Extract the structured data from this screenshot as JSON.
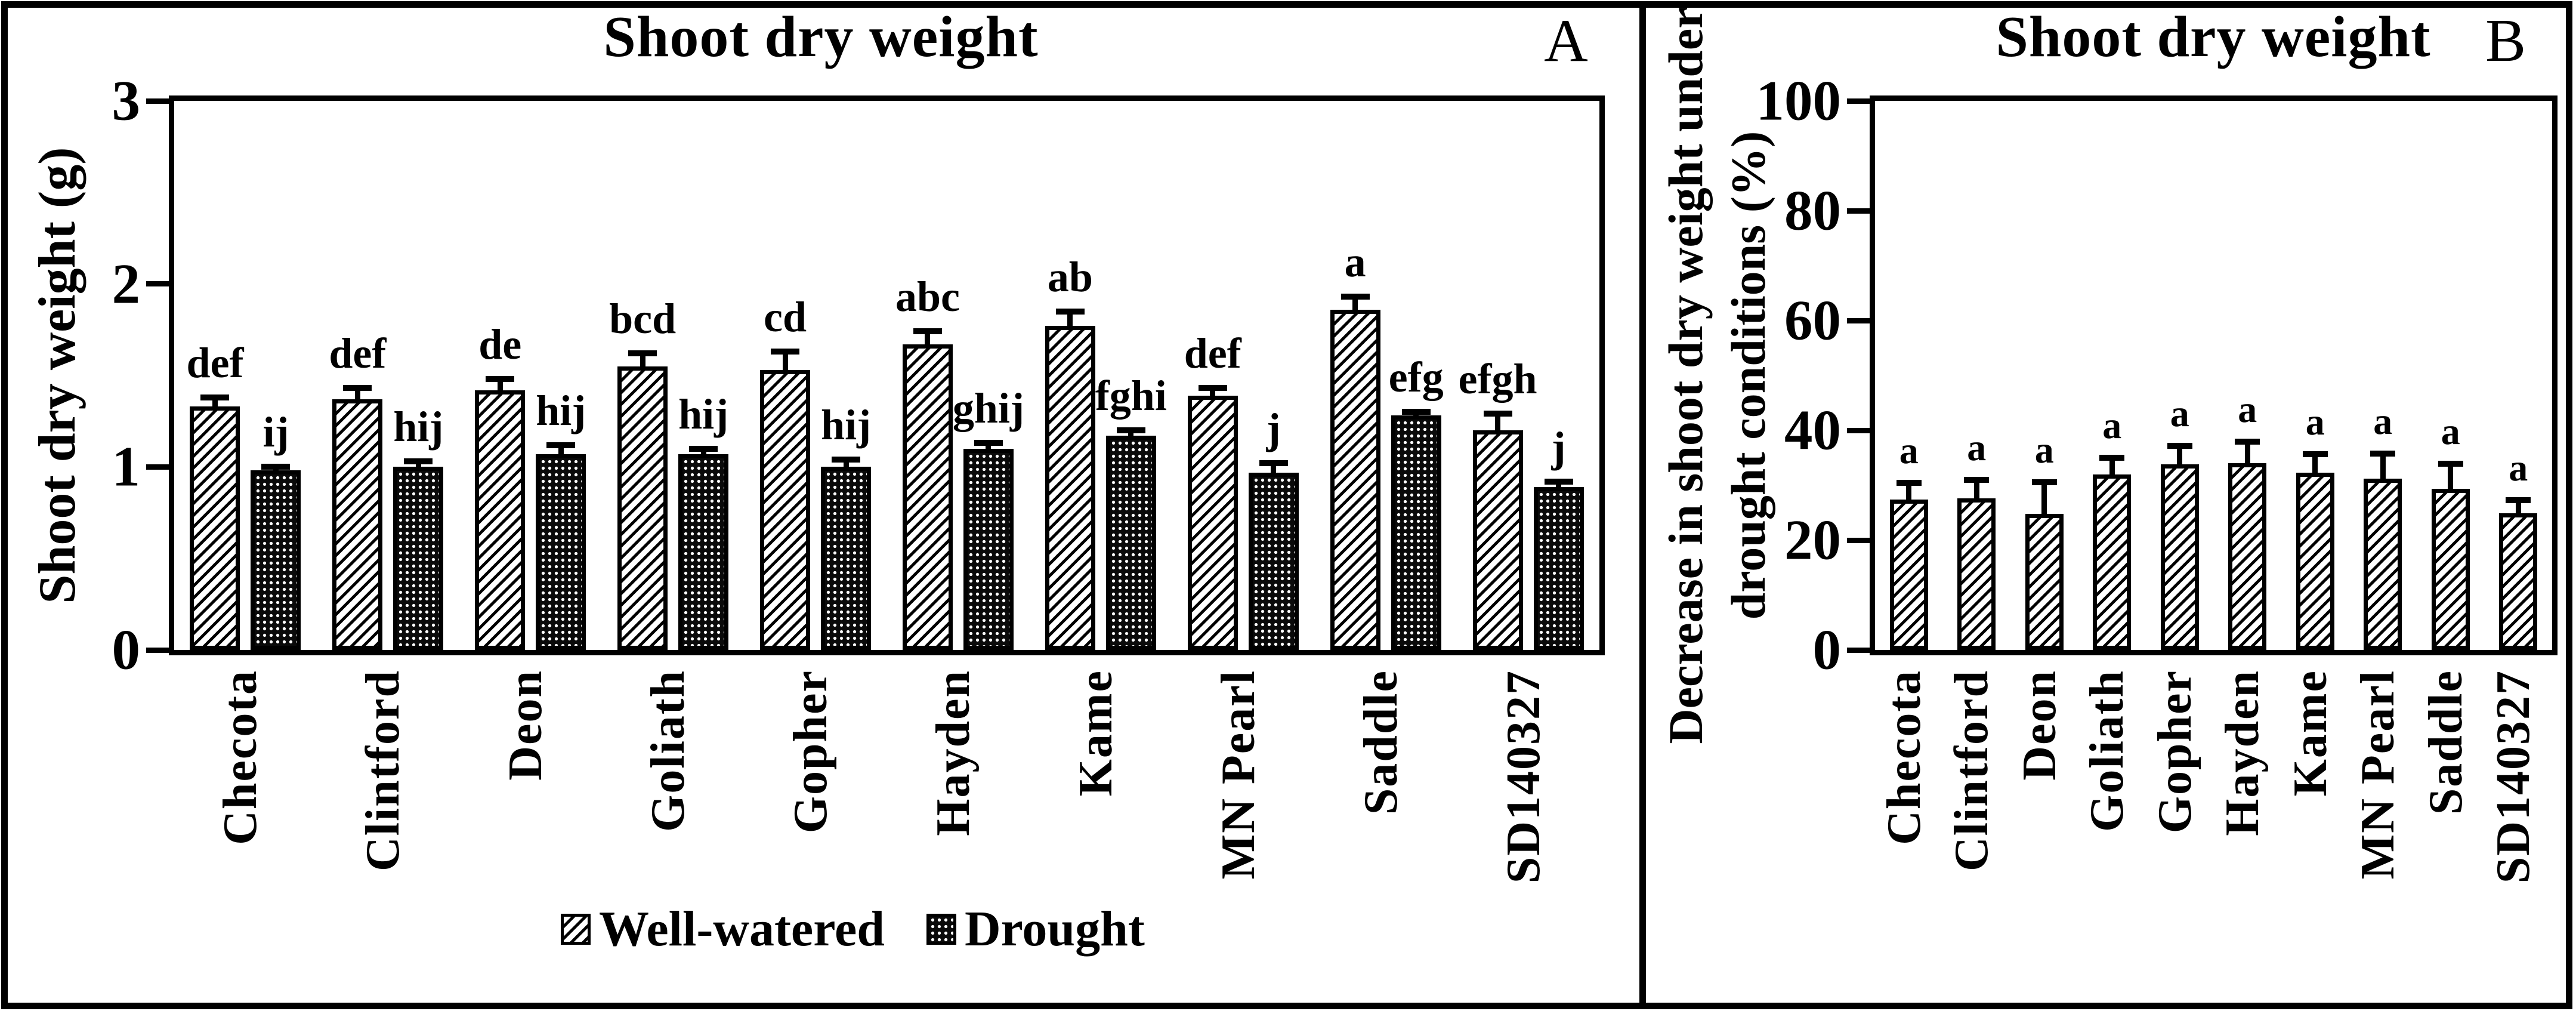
{
  "figure": {
    "panel_a": {
      "corner_label": "A",
      "title": "Shoot dry weight",
      "y_axis_label": "Shoot dry weight (g)"
    },
    "panel_b": {
      "corner_label": "B",
      "title": "Shoot dry weight",
      "y_axis_label_line1": "Decrease in shoot dry weight under",
      "y_axis_label_line2": "drought conditions (%)"
    },
    "colors": {
      "ink": "#000000",
      "background": "#ffffff"
    }
  },
  "chart_data": [
    {
      "panel": "A",
      "type": "bar",
      "title": "Shoot dry weight",
      "xlabel": "",
      "ylabel": "Shoot dry weight (g)",
      "ylim": [
        0,
        3
      ],
      "yticks": [
        0,
        1,
        2,
        3
      ],
      "grid": false,
      "legend_position": "bottom",
      "categories": [
        "Checota",
        "Clintford",
        "Deon",
        "Goliath",
        "Gopher",
        "Hayden",
        "Kame",
        "MN Pearl",
        "Saddle",
        "SD140327"
      ],
      "series": [
        {
          "name": "Well-watered",
          "pattern": "diagonal-hatch",
          "values": [
            1.33,
            1.37,
            1.42,
            1.55,
            1.53,
            1.67,
            1.77,
            1.39,
            1.86,
            1.2
          ],
          "errors": [
            0.05,
            0.06,
            0.06,
            0.07,
            0.1,
            0.07,
            0.08,
            0.04,
            0.07,
            0.09
          ],
          "letters": [
            "def",
            "def",
            "de",
            "bcd",
            "cd",
            "abc",
            "ab",
            "def",
            "a",
            "efgh"
          ]
        },
        {
          "name": "Drought",
          "pattern": "dots",
          "values": [
            0.98,
            1.0,
            1.07,
            1.07,
            1.0,
            1.1,
            1.17,
            0.97,
            1.28,
            0.89
          ],
          "errors": [
            0.02,
            0.03,
            0.05,
            0.03,
            0.04,
            0.03,
            0.03,
            0.05,
            0.02,
            0.03
          ],
          "letters": [
            "ij",
            "hij",
            "hij",
            "hij",
            "hij",
            "ghij",
            "fghi",
            "j",
            "efg",
            "j"
          ]
        }
      ]
    },
    {
      "panel": "B",
      "type": "bar",
      "title": "Shoot dry weight",
      "xlabel": "",
      "ylabel": "Decrease in shoot dry weight under drought conditions (%)",
      "ylim": [
        0,
        100
      ],
      "yticks": [
        0,
        20,
        40,
        60,
        80,
        100
      ],
      "grid": false,
      "legend_position": "none",
      "categories": [
        "Checota",
        "Clintford",
        "Deon",
        "Goliath",
        "Gopher",
        "Hayden",
        "Kame",
        "MN Pearl",
        "Saddle",
        "SD140327"
      ],
      "series": [
        {
          "name": "Decrease in shoot dry weight",
          "pattern": "diagonal-hatch",
          "values": [
            27.4,
            27.6,
            24.8,
            32.0,
            33.8,
            34.0,
            32.3,
            31.2,
            29.4,
            24.9
          ],
          "errors": [
            3.0,
            3.4,
            5.7,
            3.0,
            3.4,
            3.9,
            3.3,
            4.6,
            4.5,
            2.4
          ],
          "letters": [
            "a",
            "a",
            "a",
            "a",
            "a",
            "a",
            "a",
            "a",
            "a",
            "a"
          ]
        }
      ]
    }
  ]
}
